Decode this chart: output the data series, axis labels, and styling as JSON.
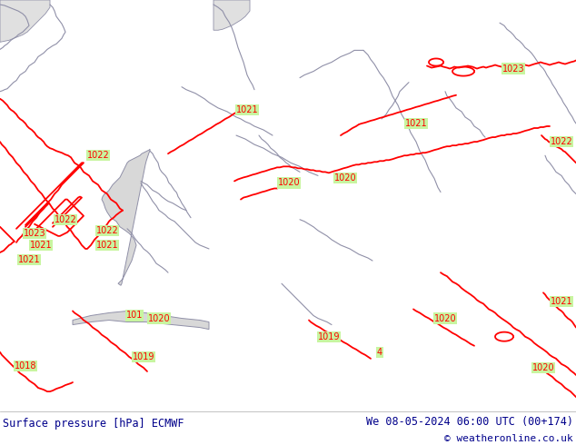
{
  "title_left": "Surface pressure [hPa] ECMWF",
  "title_right": "We 08-05-2024 06:00 UTC (00+174)",
  "copyright": "© weatheronline.co.uk",
  "bg_color": "#c8f5a0",
  "sea_color": "#d8d8d8",
  "border_color": "#9090a8",
  "isobar_color": "#ff0000",
  "footer_bg": "#ffffff",
  "footer_text_color": "#00008b",
  "fig_width": 6.34,
  "fig_height": 4.9,
  "dpi": 100
}
